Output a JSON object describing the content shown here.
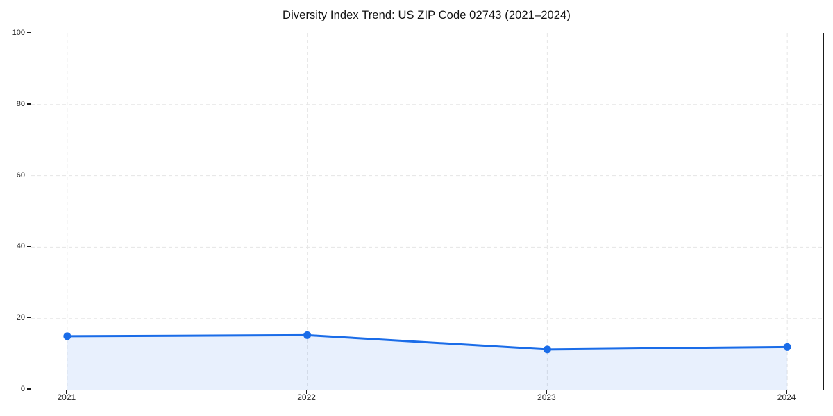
{
  "figure": {
    "background": "#ffffff"
  },
  "chart_data": {
    "type": "area",
    "title": "Diversity Index Trend: US ZIP Code 02743 (2021–2024)",
    "series_name": "Diversity Index",
    "x": [
      2021,
      2022,
      2023,
      2024
    ],
    "categories": [
      "2021",
      "2022",
      "2023",
      "2024"
    ],
    "values": [
      15.0,
      15.3,
      11.3,
      12.0
    ],
    "xlabel": "",
    "ylabel": "",
    "xlim": [
      2020.85,
      2024.15
    ],
    "ylim": [
      0,
      100
    ],
    "y_ticks": [
      0,
      20,
      40,
      60,
      80,
      100
    ],
    "grid": true,
    "grid_style": "dashed",
    "legend_position": "none",
    "marker": "circle",
    "colors": {
      "line": "#1a6ce8",
      "marker": "#1a6ce8",
      "fill": "rgba(26,108,232,0.10)",
      "grid": "#e5e5e5",
      "axis": "#1a1a1a",
      "title_text": "#111111",
      "tick_text": "#262626"
    }
  }
}
